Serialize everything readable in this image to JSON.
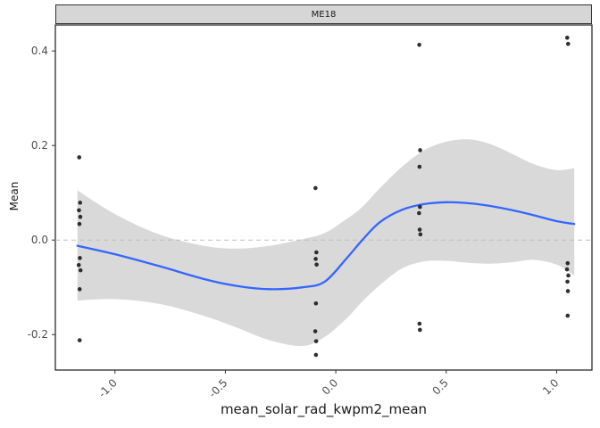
{
  "colors": {
    "smooth_line": "#3366FF",
    "ribbon": "#D9D9D9",
    "point": "#1A1A1A",
    "strip_bg": "#D6D6D6",
    "panel_border": "#1A1A1A",
    "zero_line": "#BDBDBD",
    "axis_text": "#4D4D4D",
    "tick_mark": "#333333"
  },
  "chart_data": {
    "type": "scatter",
    "title": "ME18",
    "xlabel": "mean_solar_rad_kwpm2_mean",
    "ylabel": "Mean",
    "xlim": [
      -1.27,
      1.16
    ],
    "ylim": [
      -0.275,
      0.455
    ],
    "x_ticks": [
      -1.0,
      -0.5,
      0.0,
      0.5,
      1.0
    ],
    "x_tick_labels": [
      "-1.0",
      "-0.5",
      "0.0",
      "0.5",
      "1.0"
    ],
    "y_ticks": [
      -0.2,
      0.0,
      0.2,
      0.4
    ],
    "y_tick_labels": [
      "-0.2",
      "0.0",
      "0.2",
      "0.4"
    ],
    "zero_line_y": 0.0,
    "grid": false,
    "legend": "none",
    "points": [
      [
        -1.162,
        0.175
      ],
      [
        -1.158,
        0.079
      ],
      [
        -1.163,
        0.063
      ],
      [
        -1.157,
        0.049
      ],
      [
        -1.161,
        0.034
      ],
      [
        -1.159,
        -0.038
      ],
      [
        -1.164,
        -0.053
      ],
      [
        -1.156,
        -0.064
      ],
      [
        -1.16,
        -0.104
      ],
      [
        -1.16,
        -0.212
      ],
      [
        -0.092,
        0.11
      ],
      [
        -0.088,
        -0.026
      ],
      [
        -0.091,
        -0.04
      ],
      [
        -0.087,
        -0.052
      ],
      [
        -0.09,
        -0.134
      ],
      [
        -0.093,
        -0.193
      ],
      [
        -0.089,
        -0.214
      ],
      [
        -0.09,
        -0.243
      ],
      [
        0.378,
        0.413
      ],
      [
        0.382,
        0.19
      ],
      [
        0.379,
        0.155
      ],
      [
        0.381,
        0.07
      ],
      [
        0.377,
        0.057
      ],
      [
        0.38,
        0.022
      ],
      [
        0.383,
        0.012
      ],
      [
        0.379,
        -0.177
      ],
      [
        0.381,
        -0.19
      ],
      [
        1.048,
        0.428
      ],
      [
        1.052,
        0.415
      ],
      [
        1.05,
        -0.049
      ],
      [
        1.047,
        -0.062
      ],
      [
        1.053,
        -0.075
      ],
      [
        1.049,
        -0.088
      ],
      [
        1.051,
        -0.108
      ],
      [
        1.05,
        -0.16
      ]
    ],
    "smooth": {
      "x": [
        -1.17,
        -1.0,
        -0.8,
        -0.6,
        -0.45,
        -0.3,
        -0.15,
        -0.05,
        0.05,
        0.12,
        0.2,
        0.3,
        0.4,
        0.5,
        0.6,
        0.7,
        0.8,
        0.9,
        1.0,
        1.08
      ],
      "y": [
        -0.012,
        -0.03,
        -0.055,
        -0.082,
        -0.097,
        -0.104,
        -0.1,
        -0.088,
        -0.038,
        0.0,
        0.038,
        0.064,
        0.076,
        0.08,
        0.078,
        0.072,
        0.063,
        0.052,
        0.04,
        0.034
      ],
      "upper": [
        0.105,
        0.055,
        0.012,
        -0.012,
        -0.018,
        -0.012,
        0.002,
        0.015,
        0.045,
        0.07,
        0.11,
        0.155,
        0.19,
        0.208,
        0.213,
        0.203,
        0.182,
        0.16,
        0.148,
        0.152
      ],
      "lower": [
        -0.128,
        -0.125,
        -0.135,
        -0.16,
        -0.185,
        -0.212,
        -0.224,
        -0.205,
        -0.165,
        -0.13,
        -0.095,
        -0.06,
        -0.045,
        -0.044,
        -0.048,
        -0.05,
        -0.047,
        -0.042,
        -0.052,
        -0.075
      ]
    }
  }
}
